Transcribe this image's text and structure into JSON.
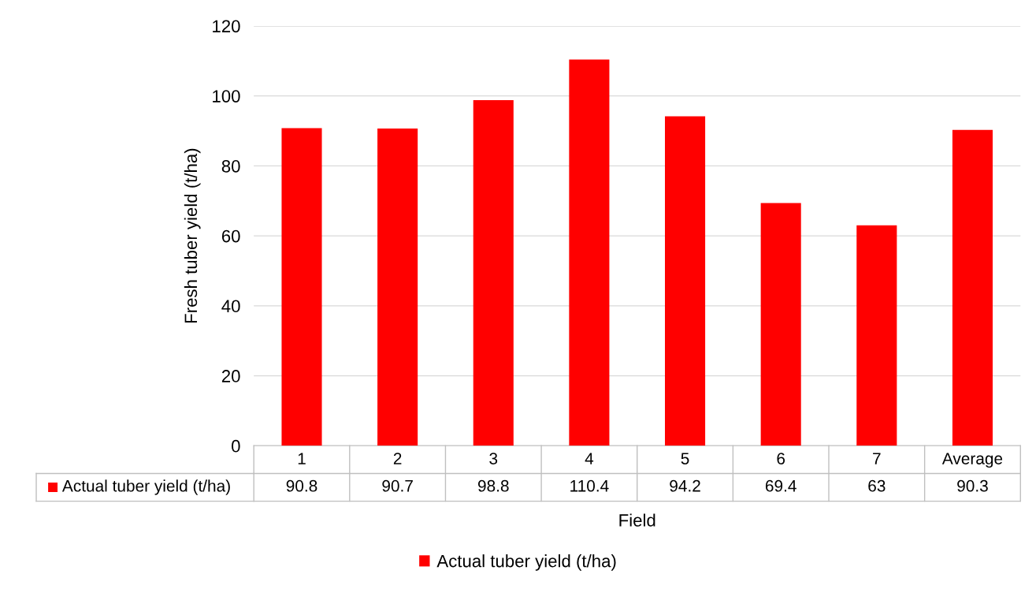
{
  "chart_data": {
    "type": "bar",
    "xlabel": "Field",
    "ylabel": "Fresh tuber yield (t/ha)",
    "categories": [
      "1",
      "2",
      "3",
      "4",
      "5",
      "6",
      "7",
      "Average"
    ],
    "series": [
      {
        "name": "Actual tuber yield (t/ha)",
        "color": "#ff0000",
        "values": [
          90.8,
          90.7,
          98.8,
          110.4,
          94.2,
          69.4,
          63,
          90.3
        ]
      }
    ],
    "ylim": [
      0,
      120
    ],
    "yticks": [
      0,
      20,
      40,
      60,
      80,
      100,
      120
    ],
    "grid": "y",
    "legend": "bottom",
    "data_labels": true
  }
}
